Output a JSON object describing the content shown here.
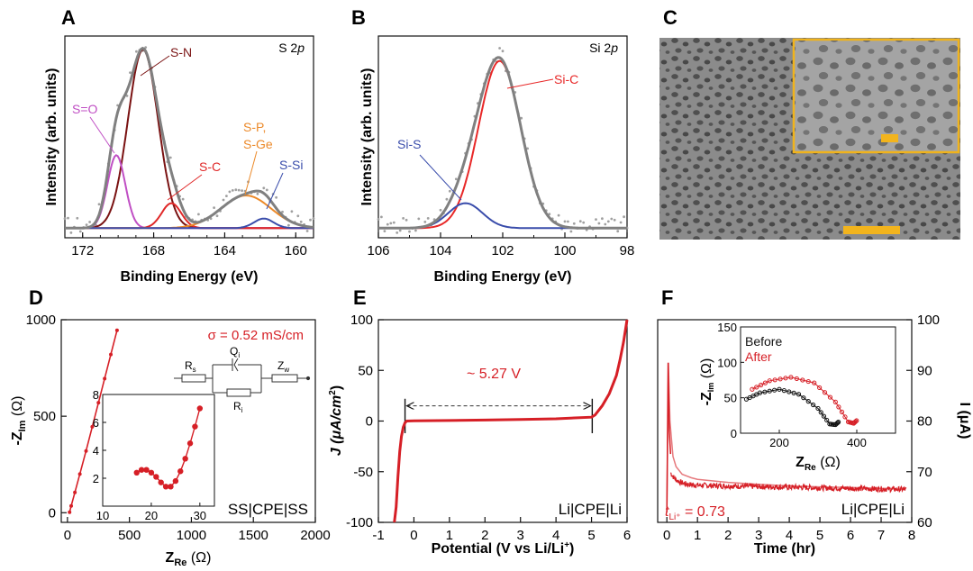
{
  "panels": {
    "A": {
      "label": "A",
      "corner": "S 2",
      "corner_italic": "p",
      "xlabel": "Binding Energy (eV)",
      "ylabel": "Intensity (arb. units)",
      "xticks": [
        "172",
        "168",
        "164",
        "160"
      ],
      "annotations": [
        "S-N",
        "S=O",
        "S-P,",
        "S-Ge",
        "S-C",
        "S-Si"
      ]
    },
    "B": {
      "label": "B",
      "corner": "Si 2",
      "corner_italic": "p",
      "xlabel": "Binding Energy (eV)",
      "ylabel": "Intensity (arb. units)",
      "xticks": [
        "106",
        "104",
        "102",
        "100",
        "98"
      ],
      "annotations": [
        "Si-C",
        "Si-S"
      ]
    },
    "C": {
      "label": "C"
    },
    "D": {
      "label": "D",
      "sigma": "σ = 0.52 mS/cm",
      "sample": "SS|CPE|SS",
      "ylabel_main": "-Z",
      "ylabel_sub": "Im",
      "ylabel_unit": " (Ω)",
      "xlabel_main": "Z",
      "xlabel_sub": "Re",
      "xlabel_unit": " (Ω)",
      "xticks": [
        "0",
        "500",
        "1000",
        "1500",
        "2000"
      ],
      "yticks": [
        "0",
        "500",
        "1000"
      ],
      "inset_xticks": [
        "10",
        "20",
        "30"
      ],
      "inset_yticks": [
        "2",
        "4",
        "6",
        "8"
      ],
      "circuit": {
        "Rs": "R",
        "Rs_sub": "s",
        "Qi": "Q",
        "Qi_sub": "i",
        "Ri": "R",
        "Ri_sub": "i",
        "Zw": "Z",
        "Zw_sub": "w"
      }
    },
    "E": {
      "label": "E",
      "window": "~ 5.27 V",
      "sample": "Li|CPE|Li",
      "ylabel": "J (μA/cm",
      "ylabel_sup": "2",
      "ylabel_end": ")",
      "xlabel": "Potential (V vs Li/Li",
      "xlabel_sup": "+",
      "xlabel_end": ")",
      "xticks": [
        "-1",
        "0",
        "1",
        "2",
        "3",
        "4",
        "5",
        "6"
      ],
      "yticks": [
        "100",
        "50",
        "0",
        "-50",
        "-100"
      ]
    },
    "F": {
      "label": "F",
      "sample": "Li|CPE|Li",
      "tli_t": "t",
      "tli_sub": "Li⁺",
      "tli_val": " = 0.73",
      "xlabel": "Time (hr)",
      "ylabel": "I (μA)",
      "xticks": [
        "0",
        "1",
        "2",
        "3",
        "4",
        "5",
        "6",
        "7",
        "8"
      ],
      "yticks": [
        "100",
        "90",
        "80",
        "70",
        "60"
      ],
      "inset": {
        "legend_before": "Before",
        "legend_after": "After",
        "ylabel_main": "-Z",
        "ylabel_sub": "Im",
        "ylabel_unit": " (Ω)",
        "xlabel_main": "Z",
        "xlabel_sub": "Re",
        "xlabel_unit": " (Ω)",
        "xticks": [
          "200",
          "400"
        ],
        "yticks": [
          "150",
          "100",
          "50",
          "0"
        ]
      }
    }
  },
  "colors": {
    "raw": "#a0a0a0",
    "envelope": "#808080",
    "sn": "#7a1212",
    "so": "#c04fc4",
    "sc": "#e02828",
    "spge": "#ec8a2a",
    "ssi": "#3a4dab",
    "sic": "#e82828",
    "red": "#d61f26",
    "black": "#111111",
    "scale": "#f2b41d"
  },
  "chart_data": [
    {
      "type": "line",
      "panel": "A",
      "xlabel": "Binding Energy (eV)",
      "ylabel": "Intensity (arb. units)",
      "xlim": [
        173,
        159
      ],
      "x_reversed": true,
      "baseline": 0.05,
      "peaks": [
        {
          "name": "S-N",
          "center": 168.6,
          "height": 0.93,
          "sigma": 0.85
        },
        {
          "name": "S=O",
          "center": 170.1,
          "height": 0.38,
          "sigma": 0.5
        },
        {
          "name": "S-C",
          "center": 167.0,
          "height": 0.13,
          "sigma": 0.55
        },
        {
          "name": "S-P, S-Ge",
          "center": 162.8,
          "height": 0.17,
          "sigma": 1.4
        },
        {
          "name": "S-Si",
          "center": 161.8,
          "height": 0.05,
          "sigma": 0.55
        }
      ],
      "ylim": [
        0,
        1.05
      ]
    },
    {
      "type": "line",
      "panel": "B",
      "xlabel": "Binding Energy (eV)",
      "ylabel": "Intensity (arb. units)",
      "xlim": [
        106,
        98
      ],
      "x_reversed": true,
      "baseline": 0.05,
      "peaks": [
        {
          "name": "Si-C",
          "center": 102.1,
          "height": 0.87,
          "sigma": 0.68
        },
        {
          "name": "Si-S",
          "center": 103.2,
          "height": 0.13,
          "sigma": 0.55
        }
      ],
      "ylim": [
        0,
        1.05
      ]
    },
    {
      "type": "line",
      "panel": "D",
      "xlabel": "ZRe (Ω)",
      "ylabel": "-ZIm (Ω)",
      "xlim": [
        -50,
        2000
      ],
      "ylim": [
        -50,
        1000
      ],
      "x": [
        17,
        30,
        60,
        100,
        150,
        200,
        250,
        300,
        350,
        400
      ],
      "y": [
        2.3,
        35,
        105,
        200,
        320,
        445,
        570,
        695,
        820,
        945
      ],
      "inset": {
        "xlim": [
          10,
          33
        ],
        "ylim": [
          0,
          8
        ],
        "x": [
          17,
          18,
          19,
          20,
          21,
          22,
          23,
          24,
          25,
          26,
          27,
          28,
          29,
          30
        ],
        "y": [
          2.4,
          2.6,
          2.6,
          2.4,
          2.1,
          1.7,
          1.4,
          1.4,
          1.8,
          2.5,
          3.4,
          4.5,
          5.7,
          7.0
        ]
      }
    },
    {
      "type": "line",
      "panel": "E",
      "xlabel": "Potential (V vs Li/Li+)",
      "ylabel": "J (μA/cm2)",
      "xlim": [
        -1,
        6
      ],
      "ylim": [
        -100,
        100
      ],
      "x": [
        -0.55,
        -0.5,
        -0.45,
        -0.4,
        -0.35,
        -0.3,
        -0.25,
        -0.2,
        0,
        1,
        2,
        3,
        4,
        5,
        5.1,
        5.3,
        5.5,
        5.7,
        5.8,
        5.9,
        6.0
      ],
      "y": [
        -100,
        -85,
        -55,
        -30,
        -15,
        -6,
        -1.5,
        0,
        0.2,
        0.5,
        1.0,
        1.6,
        2.2,
        3.8,
        6,
        15,
        27,
        45,
        60,
        78,
        100
      ],
      "window_start": -0.25,
      "window_end": 5.02
    },
    {
      "type": "line",
      "panel": "F",
      "xlabel": "Time (hr)",
      "ylabel": "I (μA)",
      "xlim": [
        -0.3,
        8
      ],
      "ylim": [
        60,
        100
      ],
      "x": [
        0.0,
        0.05,
        0.1,
        0.2,
        0.3,
        0.5,
        0.8,
        1.0,
        2.0,
        3.0,
        4.0,
        5.0,
        6.0,
        7.0,
        7.8
      ],
      "y": [
        62,
        91.5,
        80,
        73,
        71,
        69.5,
        68.8,
        68.5,
        67.9,
        67.5,
        67.2,
        67.0,
        66.9,
        66.7,
        66.5
      ],
      "inset": {
        "xlim": [
          100,
          500
        ],
        "ylim": [
          0,
          150
        ],
        "series": [
          {
            "name": "Before",
            "x": [
              115,
              150,
              200,
              250,
              300,
              330,
              345,
              355
            ],
            "y": [
              48,
              57,
              62,
              55,
              35,
              13,
              12,
              17
            ]
          },
          {
            "name": "After",
            "x": [
              130,
              175,
              230,
              290,
              345,
              378,
              392,
              402
            ],
            "y": [
              62,
              74,
              79,
              71,
              44,
              16,
              14,
              19
            ]
          }
        ]
      }
    }
  ]
}
